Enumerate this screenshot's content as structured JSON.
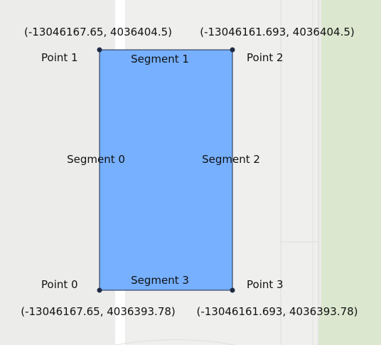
{
  "polygon": {
    "fill": "#76b0ff",
    "stroke": "#1f2a44",
    "points": [
      {
        "label": "Point 0",
        "coord_text": "(-13046167.65, 4036393.78)"
      },
      {
        "label": "Point 1",
        "coord_text": "(-13046167.65, 4036404.5)"
      },
      {
        "label": "Point 2",
        "coord_text": "(-13046161.693, 4036404.5)"
      },
      {
        "label": "Point 3",
        "coord_text": "(-13046161.693, 4036393.78)"
      }
    ],
    "segments": [
      {
        "label": "Segment 0"
      },
      {
        "label": "Segment 1"
      },
      {
        "label": "Segment 2"
      },
      {
        "label": "Segment 3"
      }
    ]
  },
  "basemap": {
    "background": "#ececea",
    "road_color": "#ffffff",
    "park_color": "#dbe8cf"
  }
}
